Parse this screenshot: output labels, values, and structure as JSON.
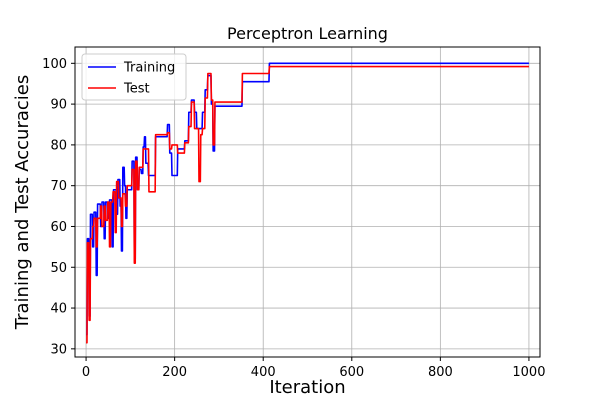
{
  "chart_data": {
    "type": "line",
    "title": "Perceptron Learning",
    "xlabel": "Iteration",
    "ylabel": "Training and Test Accuracies",
    "xlim": [
      -25,
      1025
    ],
    "ylim": [
      28,
      104
    ],
    "xticks": [
      0,
      200,
      400,
      600,
      800,
      1000
    ],
    "yticks": [
      30,
      40,
      50,
      60,
      70,
      80,
      90,
      100
    ],
    "grid": true,
    "legend_position": "top-left",
    "series": [
      {
        "name": "Training",
        "color": "#0000ff",
        "points": [
          [
            0,
            33.5
          ],
          [
            2,
            33.5
          ],
          [
            3,
            57
          ],
          [
            6,
            57
          ],
          [
            7,
            38
          ],
          [
            9,
            38
          ],
          [
            10,
            63
          ],
          [
            14,
            63
          ],
          [
            15,
            55
          ],
          [
            17,
            55
          ],
          [
            18,
            63.5
          ],
          [
            22,
            63.5
          ],
          [
            23,
            48
          ],
          [
            25,
            48
          ],
          [
            26,
            65.5
          ],
          [
            32,
            65.5
          ],
          [
            33,
            60
          ],
          [
            35,
            60
          ],
          [
            36,
            66
          ],
          [
            40,
            66
          ],
          [
            41,
            57
          ],
          [
            43,
            57
          ],
          [
            44,
            66
          ],
          [
            48,
            66
          ],
          [
            49,
            62
          ],
          [
            52,
            62
          ],
          [
            53,
            66.5
          ],
          [
            58,
            66.5
          ],
          [
            59,
            55
          ],
          [
            61,
            55
          ],
          [
            62,
            69
          ],
          [
            68,
            69
          ],
          [
            69,
            63
          ],
          [
            71,
            63
          ],
          [
            72,
            71.5
          ],
          [
            76,
            71.5
          ],
          [
            77,
            65
          ],
          [
            79,
            65
          ],
          [
            80,
            54
          ],
          [
            82,
            54
          ],
          [
            83,
            74.5
          ],
          [
            86,
            74.5
          ],
          [
            87,
            70
          ],
          [
            89,
            70
          ],
          [
            90,
            62
          ],
          [
            92,
            62
          ],
          [
            93,
            69
          ],
          [
            103,
            69
          ],
          [
            104,
            76
          ],
          [
            108,
            76
          ],
          [
            109,
            52
          ],
          [
            111,
            52
          ],
          [
            112,
            77
          ],
          [
            115,
            77
          ],
          [
            116,
            69
          ],
          [
            119,
            69
          ],
          [
            120,
            74
          ],
          [
            124,
            74
          ],
          [
            125,
            73
          ],
          [
            128,
            73
          ],
          [
            129,
            79.5
          ],
          [
            131,
            79.5
          ],
          [
            132,
            82
          ],
          [
            134,
            82
          ],
          [
            135,
            75.5
          ],
          [
            140,
            75.5
          ],
          [
            141,
            72.5
          ],
          [
            156,
            72.5
          ],
          [
            157,
            82
          ],
          [
            183,
            82
          ],
          [
            184,
            85
          ],
          [
            188,
            85
          ],
          [
            189,
            78
          ],
          [
            193,
            78
          ],
          [
            194,
            72.5
          ],
          [
            206,
            72.5
          ],
          [
            207,
            79
          ],
          [
            222,
            79
          ],
          [
            223,
            81
          ],
          [
            231,
            81
          ],
          [
            232,
            88
          ],
          [
            237,
            88
          ],
          [
            238,
            91
          ],
          [
            244,
            91
          ],
          [
            245,
            88
          ],
          [
            249,
            88
          ],
          [
            250,
            84
          ],
          [
            258,
            84
          ],
          [
            259,
            84
          ],
          [
            262,
            84
          ],
          [
            263,
            88
          ],
          [
            268,
            88
          ],
          [
            269,
            93.5
          ],
          [
            274,
            93.5
          ],
          [
            275,
            97
          ],
          [
            282,
            97
          ],
          [
            283,
            90
          ],
          [
            286,
            90
          ],
          [
            287,
            78.5
          ],
          [
            290,
            78.5
          ],
          [
            291,
            89.5
          ],
          [
            352,
            89.5
          ],
          [
            353,
            95.5
          ],
          [
            413,
            95.5
          ],
          [
            414,
            100
          ],
          [
            1000,
            100
          ]
        ]
      },
      {
        "name": "Test",
        "color": "#ff0000",
        "points": [
          [
            0,
            31.5
          ],
          [
            2,
            31.5
          ],
          [
            3,
            56
          ],
          [
            6,
            56
          ],
          [
            7,
            37
          ],
          [
            9,
            37
          ],
          [
            10,
            57
          ],
          [
            14,
            57
          ],
          [
            15,
            60
          ],
          [
            17,
            60
          ],
          [
            18,
            62
          ],
          [
            22,
            62
          ],
          [
            23,
            55
          ],
          [
            25,
            55
          ],
          [
            26,
            62
          ],
          [
            32,
            62
          ],
          [
            33,
            65
          ],
          [
            35,
            65
          ],
          [
            36,
            60
          ],
          [
            40,
            60
          ],
          [
            41,
            65
          ],
          [
            43,
            65
          ],
          [
            44,
            61.5
          ],
          [
            48,
            61.5
          ],
          [
            49,
            66
          ],
          [
            52,
            66
          ],
          [
            53,
            55
          ],
          [
            55,
            55
          ],
          [
            56,
            66
          ],
          [
            60,
            66
          ],
          [
            61,
            68.5
          ],
          [
            65,
            68.5
          ],
          [
            66,
            58.5
          ],
          [
            68,
            58.5
          ],
          [
            69,
            71
          ],
          [
            73,
            71
          ],
          [
            74,
            67
          ],
          [
            79,
            67
          ],
          [
            80,
            60
          ],
          [
            82,
            60
          ],
          [
            83,
            68
          ],
          [
            88,
            68
          ],
          [
            89,
            65
          ],
          [
            92,
            65
          ],
          [
            93,
            70
          ],
          [
            103,
            70
          ],
          [
            104,
            74
          ],
          [
            108,
            74
          ],
          [
            109,
            51
          ],
          [
            111,
            51
          ],
          [
            112,
            76
          ],
          [
            115,
            76
          ],
          [
            116,
            69
          ],
          [
            119,
            69
          ],
          [
            120,
            74.5
          ],
          [
            128,
            74.5
          ],
          [
            129,
            79
          ],
          [
            141,
            79
          ],
          [
            142,
            68.5
          ],
          [
            156,
            68.5
          ],
          [
            157,
            82.5
          ],
          [
            183,
            82.5
          ],
          [
            184,
            83
          ],
          [
            188,
            83
          ],
          [
            189,
            79
          ],
          [
            193,
            79
          ],
          [
            194,
            80
          ],
          [
            206,
            80
          ],
          [
            207,
            78
          ],
          [
            222,
            78
          ],
          [
            223,
            80.5
          ],
          [
            231,
            80.5
          ],
          [
            232,
            84.5
          ],
          [
            237,
            84.5
          ],
          [
            238,
            90.5
          ],
          [
            244,
            90.5
          ],
          [
            245,
            84
          ],
          [
            254,
            84
          ],
          [
            255,
            71
          ],
          [
            258,
            71
          ],
          [
            259,
            82.5
          ],
          [
            262,
            82.5
          ],
          [
            263,
            84
          ],
          [
            268,
            84
          ],
          [
            269,
            91.5
          ],
          [
            274,
            91.5
          ],
          [
            275,
            97.5
          ],
          [
            282,
            97.5
          ],
          [
            283,
            91
          ],
          [
            286,
            91
          ],
          [
            287,
            80
          ],
          [
            290,
            80
          ],
          [
            291,
            90.5
          ],
          [
            352,
            90.5
          ],
          [
            353,
            97.5
          ],
          [
            413,
            97.5
          ],
          [
            414,
            99.2
          ],
          [
            1000,
            99.2
          ]
        ]
      }
    ]
  }
}
